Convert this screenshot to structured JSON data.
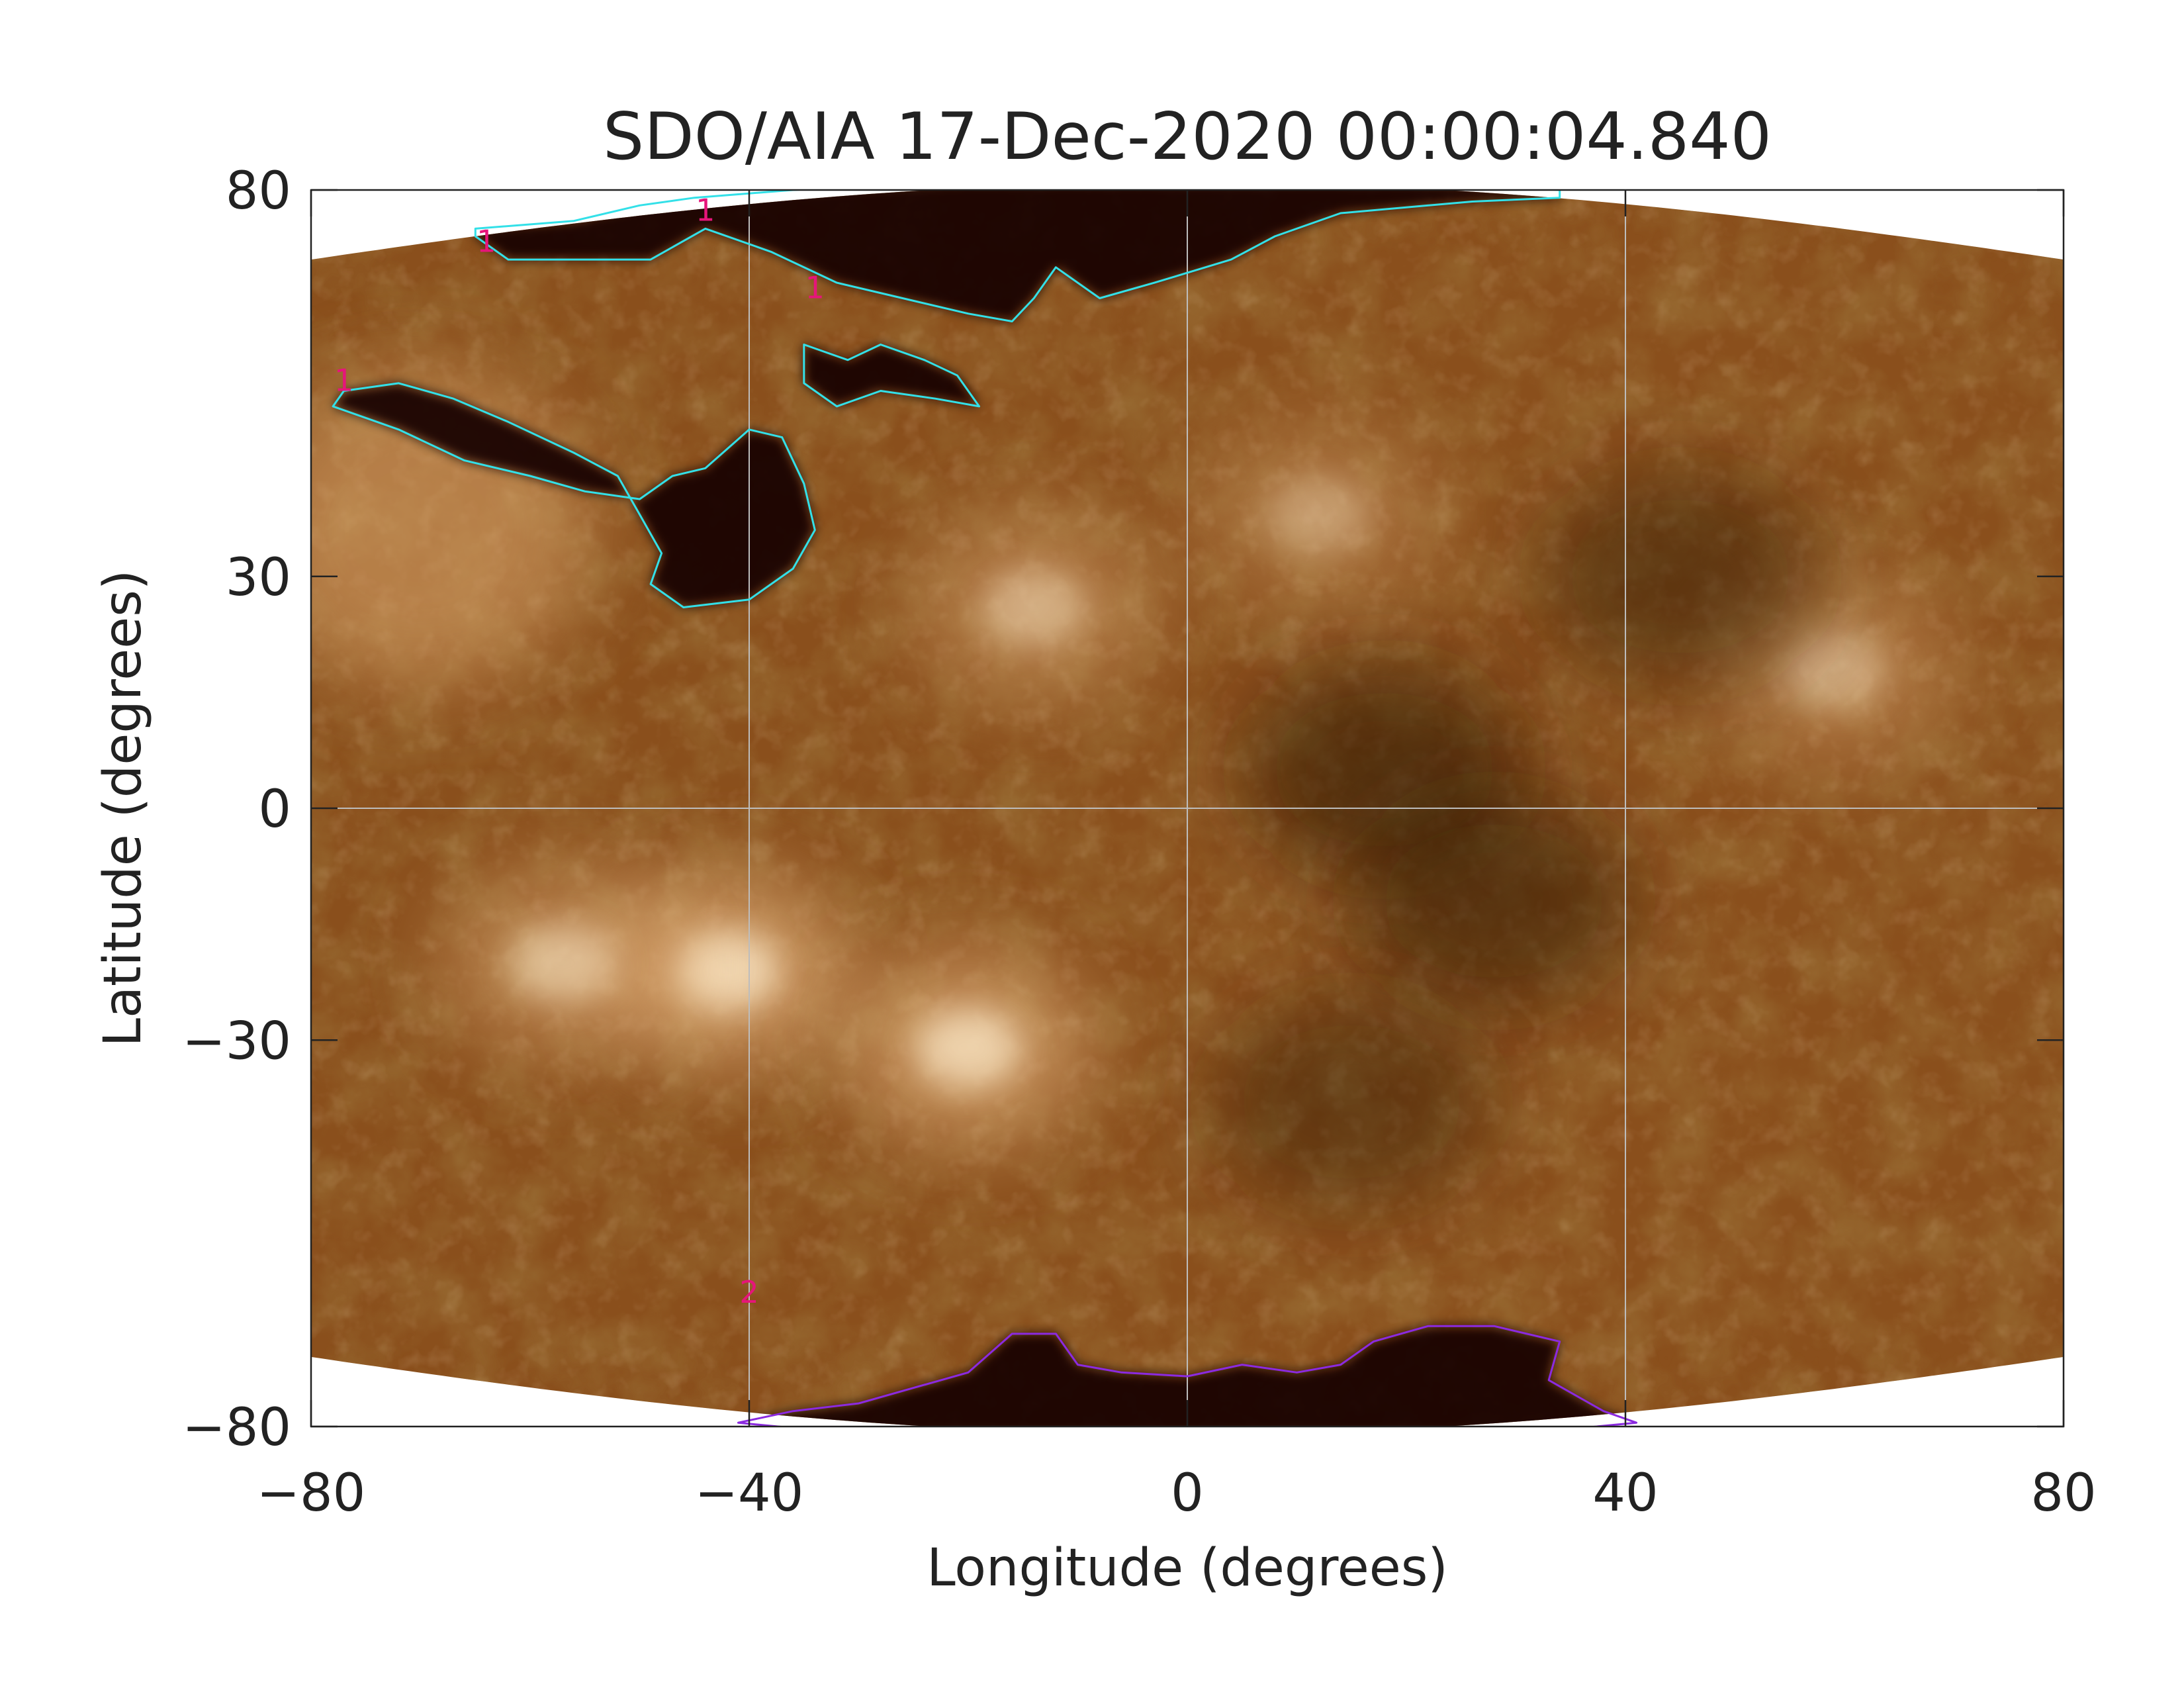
{
  "chart_data": {
    "type": "heatmap",
    "title": "SDO/AIA 17-Dec-2020 00:00:04.840",
    "xlabel": "Longitude (degrees)",
    "ylabel": "Latitude (degrees)",
    "xlim": [
      -80,
      80
    ],
    "ylim": [
      -80,
      80
    ],
    "x_ticks": [
      -80,
      -40,
      0,
      40,
      80
    ],
    "y_ticks": [
      -80,
      -30,
      0,
      30,
      80
    ],
    "x_grid": [
      -40,
      0,
      40
    ],
    "y_grid": [
      0
    ],
    "grid": true,
    "colormap": "SDO AIA 193 (copper/brown)",
    "coronal_holes": [
      {
        "label": "1",
        "hemisphere": "north",
        "contour_color": "#33e0e8",
        "label_color": "#e6157a",
        "label_positions": [
          [
            -77,
            54
          ],
          [
            -64,
            72
          ],
          [
            -44,
            76
          ],
          [
            -34,
            66
          ]
        ],
        "outline": [
          [
            -65,
            75
          ],
          [
            -56,
            76
          ],
          [
            -50,
            78
          ],
          [
            -45,
            79
          ],
          [
            -36,
            80
          ],
          [
            -20,
            81
          ],
          [
            0,
            81
          ],
          [
            20,
            81
          ],
          [
            34,
            80
          ],
          [
            34,
            79
          ],
          [
            26,
            78.5
          ],
          [
            14,
            77
          ],
          [
            8,
            74
          ],
          [
            4,
            71
          ],
          [
            -3,
            68
          ],
          [
            -8,
            66
          ],
          [
            -12,
            70
          ],
          [
            -14,
            66
          ],
          [
            -16,
            63
          ],
          [
            -20,
            64
          ],
          [
            -26,
            66
          ],
          [
            -32,
            68
          ],
          [
            -38,
            72
          ],
          [
            -44,
            75
          ],
          [
            -49,
            71
          ],
          [
            -55,
            71
          ],
          [
            -62,
            71
          ],
          [
            -65,
            74
          ]
        ]
      },
      {
        "label": "1",
        "hemisphere": "north",
        "contour_color": "#33e0e8",
        "label_color": "#e6157a",
        "outline": [
          [
            -77,
            54
          ],
          [
            -72,
            55
          ],
          [
            -67,
            53
          ],
          [
            -62,
            50
          ],
          [
            -56,
            46
          ],
          [
            -52,
            43
          ],
          [
            -50,
            38
          ],
          [
            -48,
            33
          ],
          [
            -49,
            29
          ],
          [
            -46,
            26
          ],
          [
            -40,
            27
          ],
          [
            -36,
            31
          ],
          [
            -34,
            36
          ],
          [
            -35,
            42
          ],
          [
            -37,
            48
          ],
          [
            -40,
            49
          ],
          [
            -44,
            44
          ],
          [
            -47,
            43
          ],
          [
            -50,
            40
          ],
          [
            -55,
            41
          ],
          [
            -60,
            43
          ],
          [
            -66,
            45
          ],
          [
            -72,
            49
          ],
          [
            -78,
            52
          ]
        ]
      },
      {
        "label": "1",
        "hemisphere": "north",
        "contour_color": "#33e0e8",
        "label_color": "#e6157a",
        "outline": [
          [
            -35,
            60
          ],
          [
            -31,
            58
          ],
          [
            -28,
            60
          ],
          [
            -24,
            58
          ],
          [
            -21,
            56
          ],
          [
            -19,
            52
          ],
          [
            -23,
            53
          ],
          [
            -28,
            54
          ],
          [
            -32,
            52
          ],
          [
            -35,
            55
          ]
        ]
      },
      {
        "label": "2",
        "hemisphere": "south",
        "contour_color": "#8b2ae0",
        "label_color": "#e6157a",
        "label_positions": [
          [
            -40,
            -64
          ]
        ],
        "outline": [
          [
            -41,
            -79.5
          ],
          [
            -36,
            -78
          ],
          [
            -30,
            -77
          ],
          [
            -25,
            -75
          ],
          [
            -20,
            -73
          ],
          [
            -16,
            -68
          ],
          [
            -12,
            -68
          ],
          [
            -10,
            -72
          ],
          [
            -6,
            -73
          ],
          [
            0,
            -73.5
          ],
          [
            5,
            -72
          ],
          [
            10,
            -73
          ],
          [
            14,
            -72
          ],
          [
            17,
            -69
          ],
          [
            22,
            -67
          ],
          [
            28,
            -67
          ],
          [
            34,
            -69
          ],
          [
            33,
            -74
          ],
          [
            38,
            -78
          ],
          [
            41,
            -79.5
          ],
          [
            30,
            -81
          ],
          [
            0,
            -81
          ],
          [
            -30,
            -81
          ]
        ]
      }
    ],
    "features": [
      {
        "kind": "active_region",
        "lon": -42,
        "lat": -21,
        "brightness": 1.0
      },
      {
        "kind": "active_region",
        "lon": -20,
        "lat": -31,
        "brightness": 0.95
      },
      {
        "kind": "active_region",
        "lon": -57,
        "lat": -20,
        "brightness": 0.7
      },
      {
        "kind": "active_region",
        "lon": -14,
        "lat": 26,
        "brightness": 0.6
      },
      {
        "kind": "active_region",
        "lon": 59,
        "lat": 18,
        "brightness": 0.55
      },
      {
        "kind": "active_region",
        "lon": 12,
        "lat": 38,
        "brightness": 0.45
      },
      {
        "kind": "bright_limb",
        "lon": -70,
        "lat": 36,
        "brightness": 0.8
      },
      {
        "kind": "dark_region",
        "lon": 18,
        "lat": 5,
        "darkness": 0.55
      },
      {
        "kind": "dark_region",
        "lon": 28,
        "lat": -12,
        "darkness": 0.5
      },
      {
        "kind": "dark_region",
        "lon": 45,
        "lat": 30,
        "darkness": 0.45
      },
      {
        "kind": "dark_region",
        "lon": 15,
        "lat": -38,
        "darkness": 0.4
      }
    ]
  }
}
